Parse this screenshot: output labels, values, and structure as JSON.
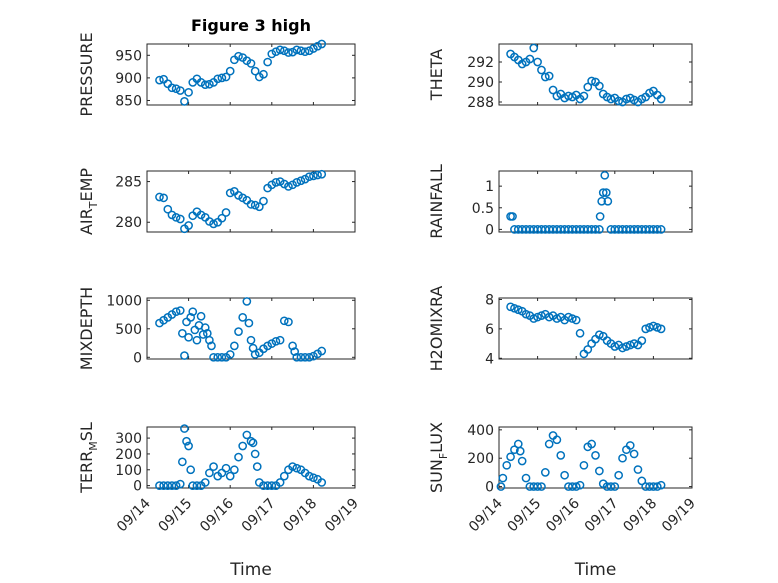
{
  "figure": {
    "title": "Figure 3 high",
    "marker_color": "#0072bd",
    "marker": "circle",
    "grid": true
  },
  "chart_data": [
    {
      "type": "scatter",
      "position": "row1-left",
      "title": "Figure 3 high",
      "ylabel": "PRESSURE",
      "ylabel_sub": "",
      "ylabel_suffix": "",
      "xlabel": "",
      "xlim": [
        0,
        5
      ],
      "ylim": [
        840,
        975
      ],
      "yticks": [
        850,
        900,
        950
      ],
      "ytick_labels": [
        "850",
        "900",
        "950"
      ],
      "x": [
        0.3,
        0.4,
        0.5,
        0.6,
        0.7,
        0.8,
        0.9,
        1.0,
        1.1,
        1.2,
        1.3,
        1.4,
        1.5,
        1.6,
        1.7,
        1.8,
        1.9,
        2.0,
        2.1,
        2.2,
        2.3,
        2.4,
        2.5,
        2.6,
        2.7,
        2.8,
        2.9,
        3.0,
        3.1,
        3.2,
        3.3,
        3.4,
        3.5,
        3.6,
        3.7,
        3.8,
        3.9,
        4.0,
        4.1,
        4.2
      ],
      "y": [
        895,
        897,
        887,
        878,
        876,
        872,
        848,
        868,
        890,
        898,
        890,
        885,
        886,
        890,
        898,
        900,
        902,
        915,
        940,
        948,
        945,
        938,
        932,
        915,
        902,
        908,
        935,
        953,
        958,
        962,
        960,
        956,
        957,
        962,
        960,
        958,
        960,
        965,
        970,
        975
      ]
    },
    {
      "type": "scatter",
      "position": "row1-right",
      "ylabel": "THETA",
      "ylabel_sub": "",
      "ylabel_suffix": "",
      "xlabel": "",
      "xlim": [
        0,
        5
      ],
      "ylim": [
        287.7,
        293.8
      ],
      "yticks": [
        288,
        290,
        292
      ],
      "ytick_labels": [
        "288",
        "290",
        "292"
      ],
      "x": [
        0.3,
        0.4,
        0.5,
        0.6,
        0.7,
        0.8,
        0.9,
        1.0,
        1.1,
        1.2,
        1.3,
        1.4,
        1.5,
        1.6,
        1.7,
        1.8,
        1.9,
        2.0,
        2.1,
        2.2,
        2.3,
        2.4,
        2.5,
        2.6,
        2.7,
        2.8,
        2.9,
        3.0,
        3.1,
        3.2,
        3.3,
        3.4,
        3.5,
        3.6,
        3.7,
        3.8,
        3.9,
        4.0,
        4.1,
        4.2
      ],
      "y": [
        292.8,
        292.5,
        292.2,
        291.8,
        292.0,
        292.3,
        293.4,
        292.0,
        291.2,
        290.5,
        290.6,
        289.2,
        288.6,
        288.8,
        288.4,
        288.6,
        288.5,
        288.7,
        288.3,
        288.6,
        289.5,
        290.1,
        290.0,
        289.6,
        288.8,
        288.5,
        288.3,
        288.4,
        288.1,
        288.0,
        288.3,
        288.4,
        288.2,
        288.0,
        288.3,
        288.5,
        288.9,
        289.1,
        288.7,
        288.3
      ]
    },
    {
      "type": "scatter",
      "position": "row2-left",
      "ylabel": "AIR",
      "ylabel_sub": "T",
      "ylabel_suffix": "EMP",
      "xlabel": "",
      "xlim": [
        0,
        5
      ],
      "ylim": [
        278.8,
        286.3
      ],
      "yticks": [
        280,
        285
      ],
      "ytick_labels": [
        "280",
        "285"
      ],
      "x": [
        0.3,
        0.4,
        0.5,
        0.6,
        0.7,
        0.8,
        0.9,
        1.0,
        1.1,
        1.2,
        1.3,
        1.4,
        1.5,
        1.6,
        1.7,
        1.8,
        1.9,
        2.0,
        2.1,
        2.2,
        2.3,
        2.4,
        2.5,
        2.6,
        2.7,
        2.8,
        2.9,
        3.0,
        3.1,
        3.2,
        3.3,
        3.4,
        3.5,
        3.6,
        3.7,
        3.8,
        3.9,
        4.0,
        4.1,
        4.2
      ],
      "y": [
        283.1,
        283.0,
        281.6,
        280.9,
        280.6,
        280.4,
        279.2,
        279.6,
        280.8,
        281.3,
        280.9,
        280.6,
        280.1,
        279.8,
        280.0,
        280.5,
        281.2,
        283.6,
        283.8,
        283.3,
        283.0,
        282.7,
        282.2,
        282.1,
        281.9,
        282.6,
        284.2,
        284.6,
        284.9,
        285.0,
        284.7,
        284.4,
        284.6,
        284.9,
        285.1,
        285.3,
        285.6,
        285.7,
        285.8,
        285.9
      ]
    },
    {
      "type": "scatter",
      "position": "row2-right",
      "ylabel": "RAINFALL",
      "ylabel_sub": "",
      "ylabel_suffix": "",
      "xlabel": "",
      "xlim": [
        0,
        5
      ],
      "ylim": [
        -0.06,
        1.35
      ],
      "yticks": [
        0,
        0.5,
        1
      ],
      "ytick_labels": [
        "0",
        "0.5",
        "1"
      ],
      "x": [
        0.3,
        0.35,
        0.4,
        0.5,
        0.6,
        0.7,
        0.8,
        0.9,
        1.0,
        1.1,
        1.2,
        1.3,
        1.4,
        1.5,
        1.6,
        1.7,
        1.8,
        1.9,
        2.0,
        2.1,
        2.2,
        2.3,
        2.4,
        2.5,
        2.6,
        2.62,
        2.66,
        2.7,
        2.74,
        2.78,
        2.82,
        2.9,
        3.0,
        3.1,
        3.2,
        3.3,
        3.4,
        3.5,
        3.6,
        3.7,
        3.8,
        3.9,
        4.0,
        4.1,
        4.2
      ],
      "y": [
        0.3,
        0.3,
        0,
        0,
        0,
        0,
        0,
        0,
        0,
        0,
        0,
        0,
        0,
        0,
        0,
        0,
        0,
        0,
        0,
        0,
        0,
        0,
        0,
        0,
        0,
        0.3,
        0.65,
        0.85,
        1.25,
        0.85,
        0.65,
        0,
        0,
        0,
        0,
        0,
        0,
        0,
        0,
        0,
        0,
        0,
        0,
        0,
        0
      ]
    },
    {
      "type": "scatter",
      "position": "row3-left",
      "ylabel": "MIXDEPTH",
      "ylabel_sub": "",
      "ylabel_suffix": "",
      "xlabel": "",
      "xlim": [
        0,
        5
      ],
      "ylim": [
        -30,
        1040
      ],
      "yticks": [
        0,
        500,
        1000
      ],
      "ytick_labels": [
        "0",
        "500",
        "1000"
      ],
      "x": [
        0.3,
        0.4,
        0.5,
        0.6,
        0.7,
        0.8,
        0.85,
        0.9,
        0.95,
        1.0,
        1.05,
        1.1,
        1.15,
        1.2,
        1.25,
        1.3,
        1.35,
        1.4,
        1.45,
        1.5,
        1.55,
        1.6,
        1.7,
        1.8,
        1.9,
        2.0,
        2.1,
        2.2,
        2.3,
        2.4,
        2.45,
        2.5,
        2.55,
        2.6,
        2.7,
        2.8,
        2.9,
        3.0,
        3.1,
        3.2,
        3.3,
        3.4,
        3.5,
        3.55,
        3.6,
        3.7,
        3.8,
        3.9,
        4.0,
        4.1,
        4.2
      ],
      "y": [
        600,
        650,
        700,
        750,
        800,
        820,
        420,
        30,
        620,
        350,
        700,
        800,
        480,
        300,
        560,
        720,
        400,
        520,
        420,
        300,
        200,
        0,
        0,
        0,
        0,
        50,
        200,
        450,
        700,
        980,
        600,
        300,
        160,
        50,
        80,
        150,
        200,
        240,
        280,
        300,
        640,
        620,
        200,
        100,
        0,
        0,
        0,
        0,
        20,
        60,
        110
      ]
    },
    {
      "type": "scatter",
      "position": "row3-right",
      "ylabel": "H2OMIXRA",
      "ylabel_sub": "",
      "ylabel_suffix": "",
      "xlabel": "",
      "xlim": [
        0,
        5
      ],
      "ylim": [
        3.95,
        8.1
      ],
      "yticks": [
        4,
        6,
        8
      ],
      "ytick_labels": [
        "4",
        "6",
        "8"
      ],
      "x": [
        0.3,
        0.4,
        0.5,
        0.6,
        0.7,
        0.8,
        0.9,
        1.0,
        1.1,
        1.2,
        1.3,
        1.4,
        1.5,
        1.6,
        1.7,
        1.8,
        1.9,
        2.0,
        2.1,
        2.2,
        2.3,
        2.4,
        2.5,
        2.6,
        2.7,
        2.8,
        2.9,
        3.0,
        3.1,
        3.2,
        3.3,
        3.4,
        3.5,
        3.6,
        3.7,
        3.8,
        3.9,
        4.0,
        4.1,
        4.2
      ],
      "y": [
        7.5,
        7.4,
        7.3,
        7.2,
        7.0,
        6.9,
        6.7,
        6.8,
        6.9,
        7.0,
        6.8,
        6.9,
        6.7,
        6.8,
        6.6,
        6.8,
        6.7,
        6.6,
        5.7,
        4.3,
        4.6,
        5.0,
        5.3,
        5.6,
        5.5,
        5.2,
        5.0,
        4.8,
        4.9,
        4.7,
        4.8,
        4.9,
        5.0,
        4.9,
        5.2,
        6.0,
        6.1,
        6.2,
        6.1,
        6.0
      ]
    },
    {
      "type": "scatter",
      "position": "row4-left",
      "ylabel": "TERR",
      "ylabel_sub": "M",
      "ylabel_suffix": "SL",
      "xlabel": "Time",
      "xlim": [
        0,
        5
      ],
      "ylim": [
        -15,
        370
      ],
      "yticks": [
        0,
        100,
        200,
        300
      ],
      "ytick_labels": [
        "0",
        "100",
        "200",
        "300"
      ],
      "x": [
        0.3,
        0.4,
        0.5,
        0.6,
        0.7,
        0.8,
        0.85,
        0.9,
        0.95,
        1.0,
        1.05,
        1.1,
        1.2,
        1.3,
        1.4,
        1.5,
        1.6,
        1.7,
        1.8,
        1.9,
        2.0,
        2.1,
        2.2,
        2.3,
        2.4,
        2.5,
        2.55,
        2.6,
        2.65,
        2.7,
        2.8,
        2.9,
        3.0,
        3.1,
        3.2,
        3.3,
        3.4,
        3.5,
        3.6,
        3.7,
        3.8,
        3.9,
        4.0,
        4.1,
        4.2
      ],
      "y": [
        0,
        0,
        0,
        0,
        0,
        10,
        150,
        360,
        280,
        250,
        100,
        0,
        0,
        0,
        20,
        80,
        120,
        60,
        80,
        110,
        60,
        100,
        180,
        250,
        320,
        280,
        270,
        200,
        120,
        20,
        0,
        0,
        0,
        0,
        20,
        60,
        100,
        120,
        110,
        100,
        80,
        60,
        50,
        40,
        20
      ]
    },
    {
      "type": "scatter",
      "position": "row4-right",
      "ylabel": "SUN",
      "ylabel_sub": "F",
      "ylabel_suffix": "LUX",
      "xlabel": "Time",
      "xlim": [
        0,
        5
      ],
      "ylim": [
        -10,
        420
      ],
      "yticks": [
        0,
        200,
        400
      ],
      "ytick_labels": [
        "0",
        "200",
        "400"
      ],
      "x": [
        0.05,
        0.1,
        0.2,
        0.3,
        0.4,
        0.5,
        0.55,
        0.6,
        0.7,
        0.8,
        0.9,
        1.0,
        1.1,
        1.2,
        1.3,
        1.4,
        1.5,
        1.6,
        1.7,
        1.8,
        1.9,
        2.0,
        2.1,
        2.2,
        2.3,
        2.4,
        2.5,
        2.6,
        2.7,
        2.8,
        2.9,
        3.0,
        3.1,
        3.2,
        3.3,
        3.4,
        3.5,
        3.6,
        3.7,
        3.8,
        3.9,
        4.0,
        4.1,
        4.2
      ],
      "y": [
        0,
        60,
        150,
        210,
        260,
        300,
        250,
        180,
        60,
        0,
        0,
        0,
        0,
        100,
        300,
        360,
        330,
        220,
        80,
        0,
        0,
        0,
        10,
        150,
        280,
        300,
        220,
        110,
        20,
        0,
        0,
        0,
        80,
        200,
        260,
        290,
        230,
        120,
        40,
        0,
        0,
        0,
        0,
        10
      ]
    }
  ],
  "x_axis": {
    "ticks": [
      0,
      1,
      2,
      3,
      4,
      5
    ],
    "tick_labels": [
      "09/14",
      "09/15",
      "09/16",
      "09/17",
      "09/18",
      "09/19"
    ]
  }
}
